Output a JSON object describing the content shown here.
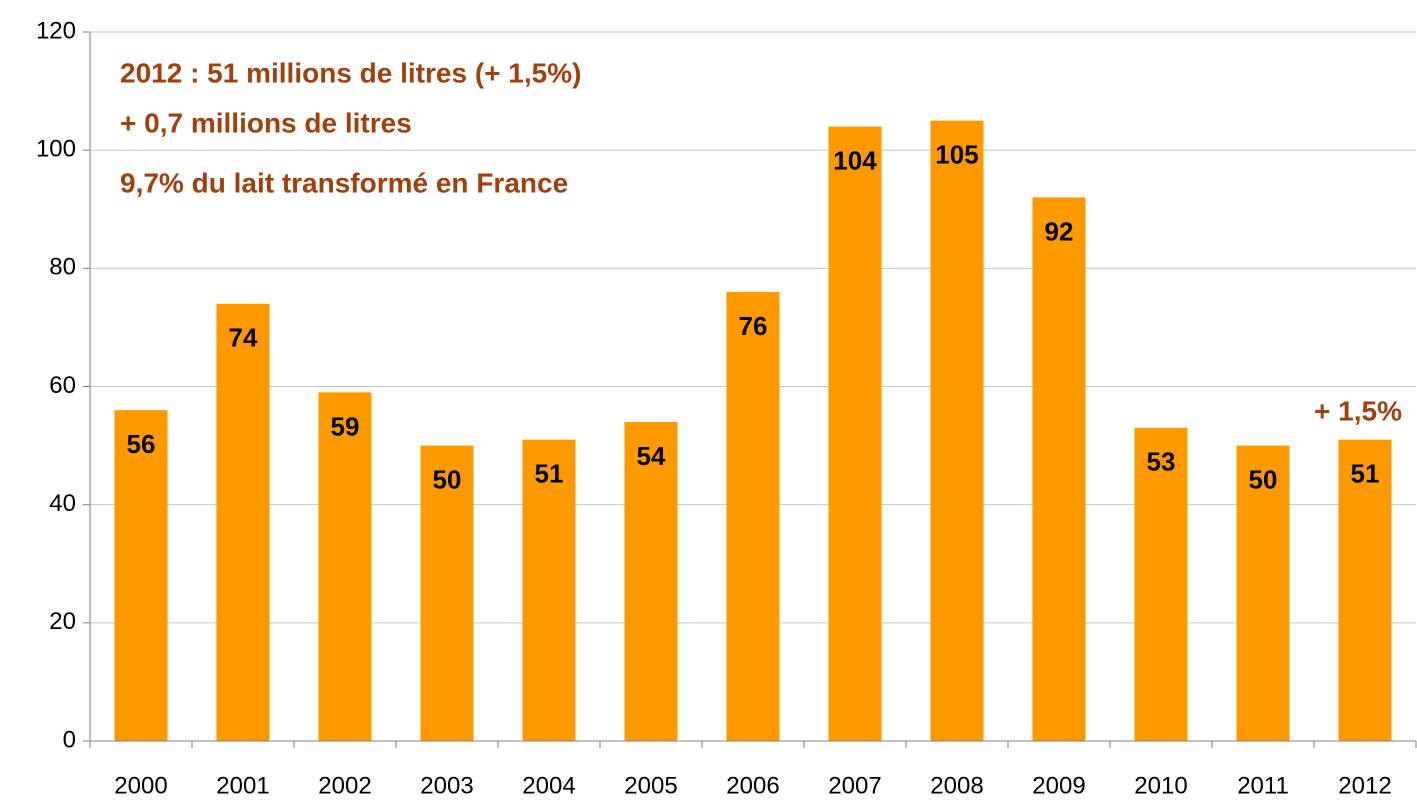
{
  "chart_data": {
    "type": "bar",
    "annotations": [
      "2012 : 51 millions de litres (+ 1,5%)",
      "+ 0,7 millions de litres",
      "9,7% du lait transformé en France",
      "+ 1,5%"
    ],
    "categories": [
      "2000",
      "2001",
      "2002",
      "2003",
      "2004",
      "2005",
      "2006",
      "2007",
      "2008",
      "2009",
      "2010",
      "2011",
      "2012"
    ],
    "values": [
      56,
      74,
      59,
      50,
      51,
      54,
      76,
      104,
      105,
      92,
      53,
      50,
      51
    ],
    "color": "#ff9900",
    "ylim": [
      0,
      120
    ],
    "yticks": [
      0,
      20,
      40,
      60,
      80,
      100,
      120
    ],
    "grid": true
  }
}
